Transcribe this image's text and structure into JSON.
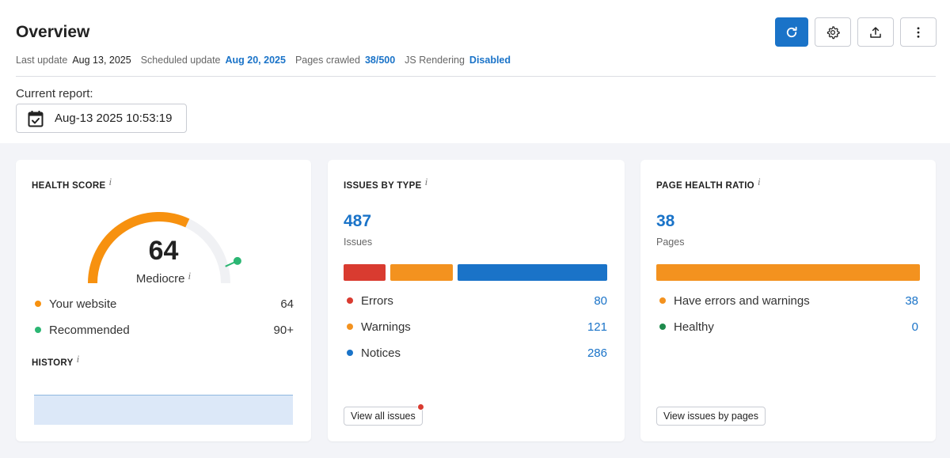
{
  "header": {
    "title": "Overview",
    "meta": {
      "last_update_label": "Last update",
      "last_update_value": "Aug 13, 2025",
      "scheduled_label": "Scheduled update",
      "scheduled_value": "Aug 20, 2025",
      "pages_label": "Pages crawled",
      "pages_value": "38/500",
      "js_label": "JS Rendering",
      "js_value": "Disabled"
    },
    "buttons": {
      "refresh_icon": "refresh-icon",
      "settings_icon": "gear-icon",
      "export_icon": "upload-icon",
      "more_icon": "more-vertical-icon"
    },
    "current_report_label": "Current report:",
    "current_report_value": "Aug-13 2025 10:53:19"
  },
  "health_score": {
    "title": "HEALTH SCORE",
    "score": "64",
    "score_value": 64,
    "rating": "Mediocre",
    "legend": [
      {
        "label": "Your website",
        "value": "64",
        "color": "#f7910f"
      },
      {
        "label": "Recommended",
        "value": "90+",
        "color": "#2bb673"
      }
    ],
    "history_title": "HISTORY"
  },
  "issues_by_type": {
    "title": "ISSUES BY TYPE",
    "total": "487",
    "total_label": "Issues",
    "items": [
      {
        "label": "Errors",
        "value": "80",
        "count": 80,
        "color": "#d93b30"
      },
      {
        "label": "Warnings",
        "value": "121",
        "count": 121,
        "color": "#f3921f"
      },
      {
        "label": "Notices",
        "value": "286",
        "count": 286,
        "color": "#1a73c8"
      }
    ],
    "button_label": "View all issues"
  },
  "page_health_ratio": {
    "title": "PAGE HEALTH RATIO",
    "total": "38",
    "total_label": "Pages",
    "items": [
      {
        "label": "Have errors and warnings",
        "value": "38",
        "count": 38,
        "color": "#f3921f"
      },
      {
        "label": "Healthy",
        "value": "0",
        "count": 0,
        "color": "#1e8a4c"
      }
    ],
    "button_label": "View issues by pages"
  },
  "colors": {
    "accent": "#1a73c8",
    "gauge_fill": "#f7910f",
    "gauge_track": "#f0f1f4",
    "recommended": "#2bb673"
  }
}
